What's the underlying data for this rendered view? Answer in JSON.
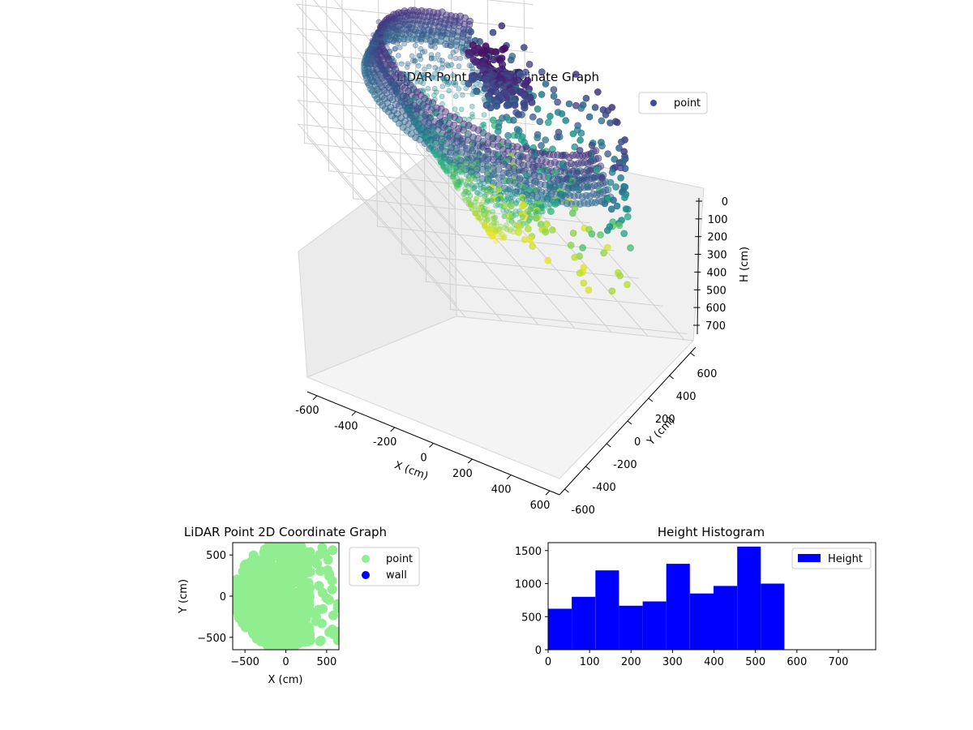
{
  "chart_data": [
    {
      "type": "scatter",
      "subtype": "3d",
      "title": "LiDAR Point 3D Coordinate Graph",
      "xlabel": "X (cm)",
      "ylabel": "Y (cm)",
      "zlabel": "H (cm)",
      "xlim": [
        -650,
        650
      ],
      "ylim": [
        -650,
        650
      ],
      "zlim": [
        750,
        0
      ],
      "xticks": [
        -600,
        -400,
        -200,
        0,
        200,
        400,
        600
      ],
      "yticks": [
        600,
        400,
        200,
        0,
        -200,
        -400,
        -600
      ],
      "zticks": [
        0,
        100,
        200,
        300,
        400,
        500,
        600,
        700
      ],
      "grid": true,
      "legend": {
        "position": "upper-right",
        "entries": [
          "point"
        ]
      },
      "series": [
        {
          "name": "point",
          "colormap": "viridis",
          "color": "#3b4f8c"
        }
      ]
    },
    {
      "type": "scatter",
      "title": "LiDAR Point 2D Coordinate Graph",
      "xlabel": "X (cm)",
      "ylabel": "Y (cm)",
      "xlim": [
        -650,
        650
      ],
      "ylim": [
        -650,
        650
      ],
      "xticks": [
        -500,
        0,
        500
      ],
      "yticks": [
        500,
        0,
        -500
      ],
      "legend": {
        "position": "outside-right",
        "entries": [
          "point",
          "wall"
        ]
      },
      "series": [
        {
          "name": "point",
          "color": "#90ee90"
        },
        {
          "name": "wall",
          "color": "#0000ff"
        }
      ]
    },
    {
      "type": "bar",
      "subtype": "histogram",
      "title": "Height Histogram",
      "xlim": [
        0,
        790
      ],
      "ylim": [
        0,
        1620
      ],
      "xticks": [
        0,
        100,
        200,
        300,
        400,
        500,
        600,
        700
      ],
      "yticks": [
        0,
        500,
        1000,
        1500
      ],
      "legend": {
        "position": "upper-right",
        "entries": [
          "Height"
        ]
      },
      "color": "#0000ff",
      "bin_edges": [
        0,
        57,
        114,
        171,
        228,
        285,
        342,
        399,
        456,
        513,
        570
      ],
      "values": [
        620,
        800,
        1200,
        665,
        730,
        1300,
        850,
        965,
        1560,
        1000
      ],
      "series": [
        {
          "name": "Height"
        }
      ]
    }
  ]
}
